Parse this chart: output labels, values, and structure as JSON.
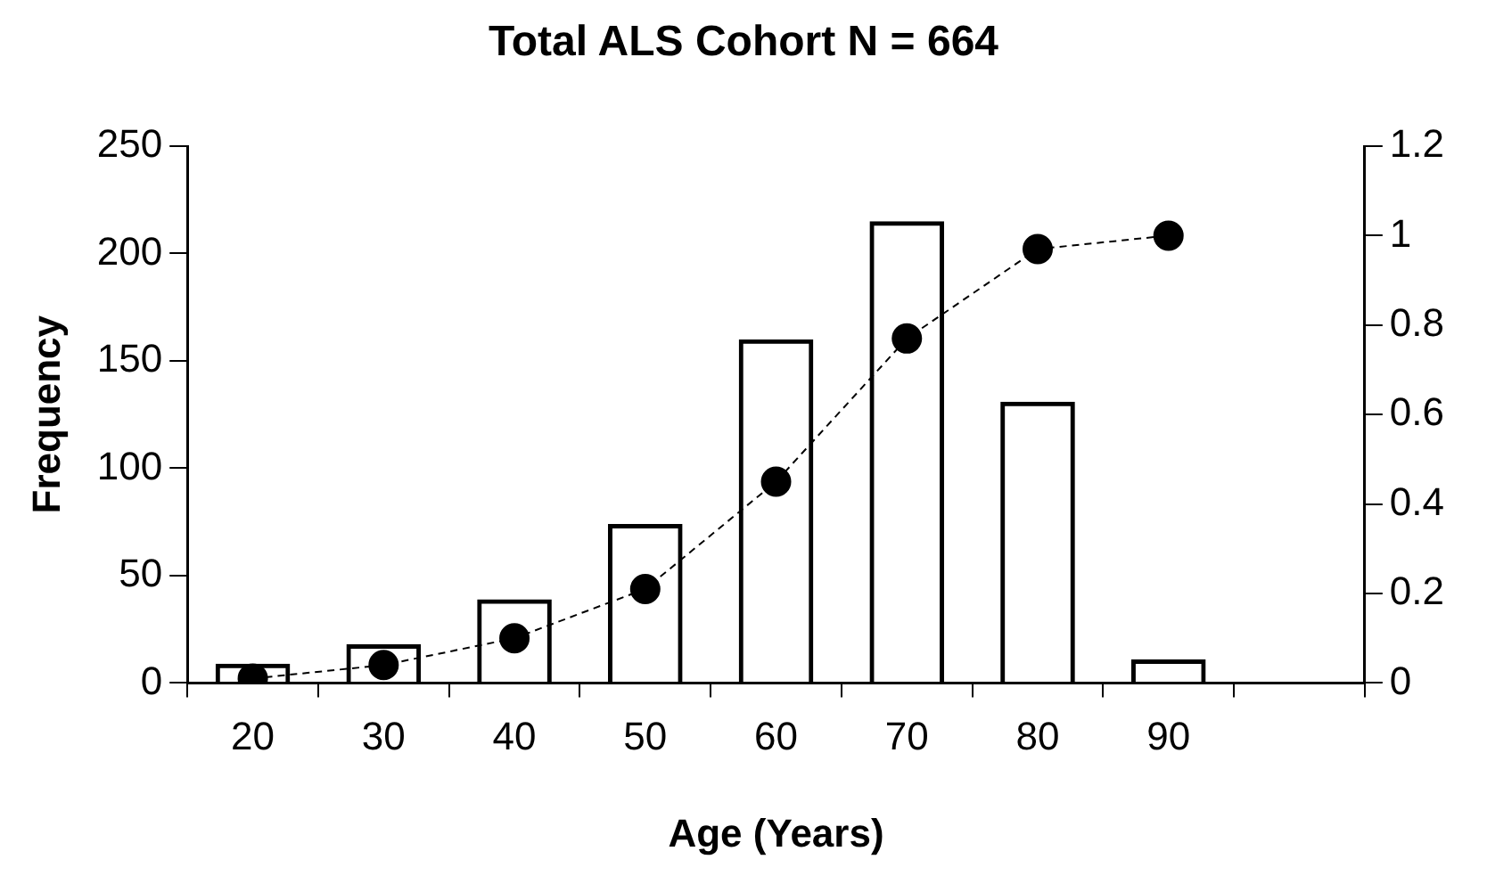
{
  "chart_data": {
    "type": "bar",
    "title": "Total ALS Cohort N = 664",
    "xlabel": "Age (Years)",
    "ylabel": "Frequency",
    "categories": [
      "20",
      "30",
      "40",
      "50",
      "60",
      "70",
      "80",
      "90",
      null
    ],
    "series": [
      {
        "color": "#000000",
        "values": [
          9,
          18,
          39,
          74,
          160,
          215,
          131,
          11,
          null
        ]
      },
      {
        "type": "line",
        "axis": "y2",
        "color": "#000000",
        "marker": "circle",
        "line_style": "dashed",
        "values": [
          0.01,
          0.04,
          0.1,
          0.21,
          0.45,
          0.77,
          0.97,
          1.0,
          null
        ]
      }
    ],
    "ylim": [
      0,
      250
    ],
    "yticks": [
      0,
      50,
      100,
      150,
      200,
      250
    ],
    "y2lim": [
      0,
      1.2
    ],
    "y2ticks": [
      0,
      0.2,
      0.4,
      0.6,
      0.8,
      1,
      1.2
    ],
    "grid": false,
    "legend": false
  }
}
